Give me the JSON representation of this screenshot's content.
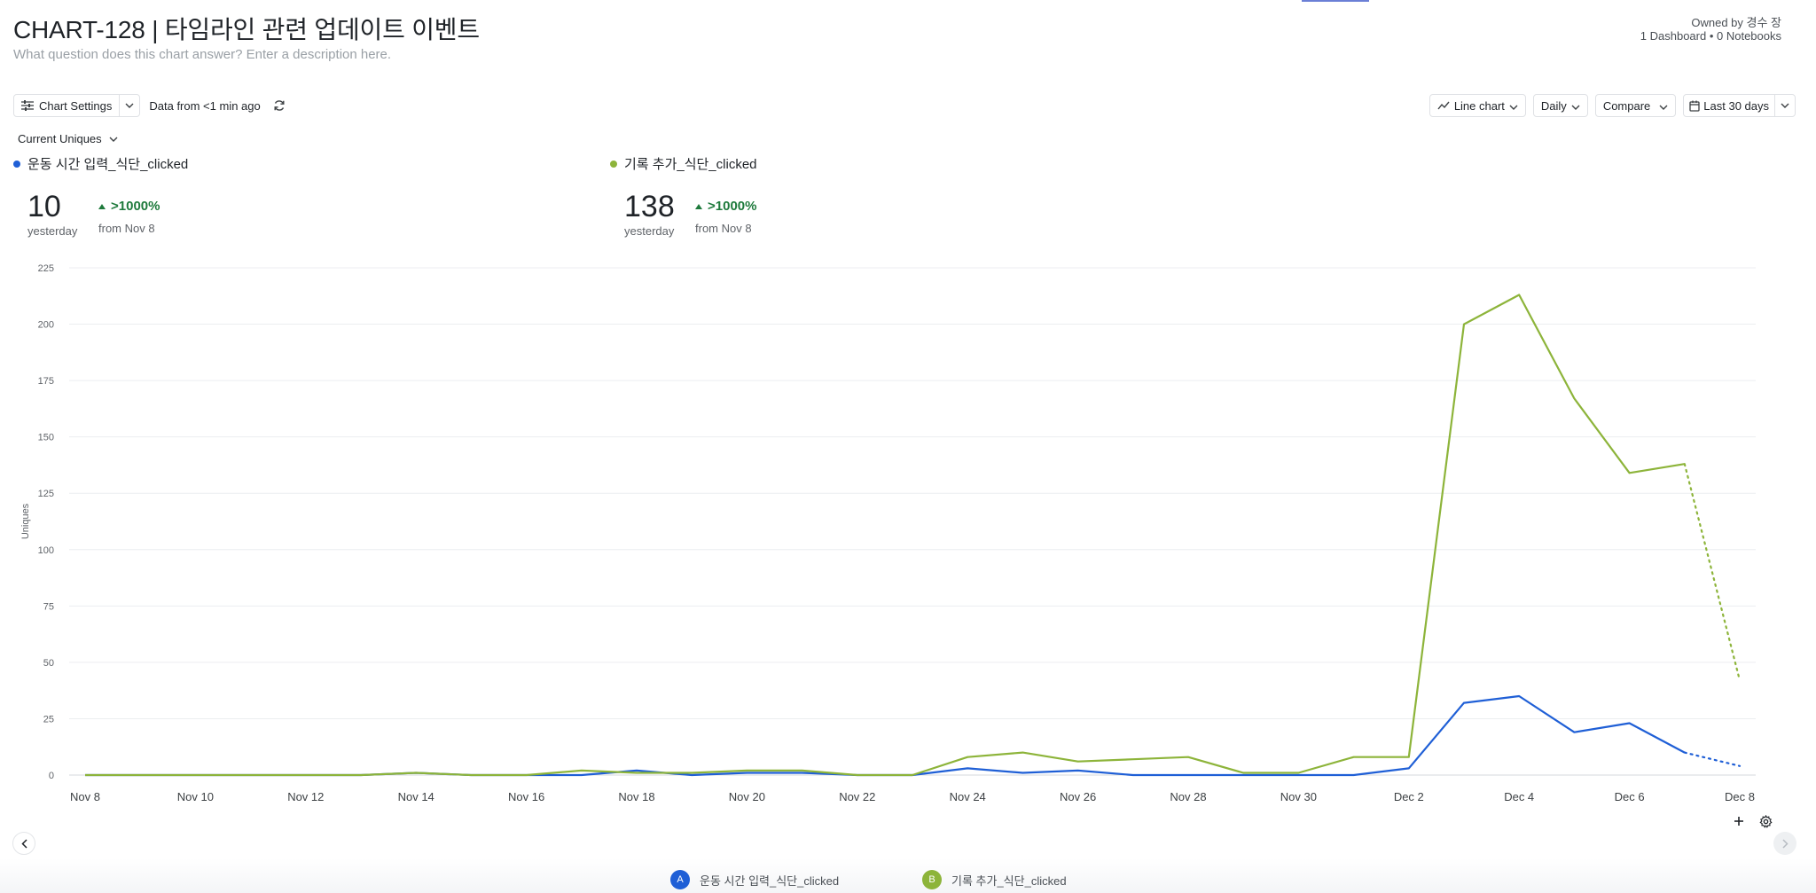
{
  "header": {
    "title": "CHART-128 | 타임라인 관련 업데이트 이벤트",
    "description_placeholder": "What question does this chart answer? Enter a description here.",
    "owner": "Owned by 경수 장",
    "meta": "1 Dashboard • 0 Notebooks"
  },
  "toolbar": {
    "chart_settings_label": "Chart Settings",
    "data_from": "Data from <1 min ago",
    "chart_type_label": "Line chart",
    "interval_label": "Daily",
    "compare_label": "Compare",
    "date_range_label": "Last 30 days"
  },
  "metric_selector": {
    "label": "Current Uniques"
  },
  "kpis": [
    {
      "series": "운동 시간 입력_식단_clicked",
      "value": "10",
      "period": "yesterday",
      "change": ">1000%",
      "from": "from Nov 8"
    },
    {
      "series": "기록 추가_식단_clicked",
      "value": "138",
      "period": "yesterday",
      "change": ">1000%",
      "from": "from Nov 8"
    }
  ],
  "bottom_legend": [
    {
      "badge": "A",
      "label": "운동 시간 입력_식단_clicked"
    },
    {
      "badge": "B",
      "label": "기록 추가_식단_clicked"
    }
  ],
  "colors": {
    "series_a": "#1f5fd6",
    "series_b": "#8db43a",
    "positive": "#1e7a3c"
  },
  "icons": [
    "sliders-icon",
    "chevron-down-icon",
    "refresh-icon",
    "line-chart-icon",
    "calendar-icon",
    "plus-icon",
    "gear-icon",
    "chevron-left-icon",
    "chevron-right-icon",
    "triangle-up-icon"
  ],
  "chart_data": {
    "type": "line",
    "ylabel": "Uniques",
    "ylim": [
      0,
      225
    ],
    "yticks": [
      0,
      25,
      50,
      75,
      100,
      125,
      150,
      175,
      200,
      225
    ],
    "x": [
      "Nov 8",
      "Nov 9",
      "Nov 10",
      "Nov 11",
      "Nov 12",
      "Nov 13",
      "Nov 14",
      "Nov 15",
      "Nov 16",
      "Nov 17",
      "Nov 18",
      "Nov 19",
      "Nov 20",
      "Nov 21",
      "Nov 22",
      "Nov 23",
      "Nov 24",
      "Nov 25",
      "Nov 26",
      "Nov 27",
      "Nov 28",
      "Nov 29",
      "Nov 30",
      "Dec 1",
      "Dec 2",
      "Dec 3",
      "Dec 4",
      "Dec 5",
      "Dec 6",
      "Dec 7",
      "Dec 8"
    ],
    "xtick_labels": [
      "Nov 8",
      "Nov 10",
      "Nov 12",
      "Nov 14",
      "Nov 16",
      "Nov 18",
      "Nov 20",
      "Nov 22",
      "Nov 24",
      "Nov 26",
      "Nov 28",
      "Nov 30",
      "Dec 2",
      "Dec 4",
      "Dec 6",
      "Dec 8"
    ],
    "grid": true,
    "incomplete_from": "Dec 7",
    "series": [
      {
        "name": "운동 시간 입력_식단_clicked",
        "color": "#1f5fd6",
        "values": [
          0,
          0,
          0,
          0,
          0,
          0,
          1,
          0,
          0,
          0,
          2,
          0,
          1,
          1,
          0,
          0,
          3,
          1,
          2,
          0,
          0,
          0,
          0,
          0,
          3,
          32,
          35,
          19,
          23,
          10,
          4
        ]
      },
      {
        "name": "기록 추가_식단_clicked",
        "color": "#8db43a",
        "values": [
          0,
          0,
          0,
          0,
          0,
          0,
          1,
          0,
          0,
          2,
          1,
          1,
          2,
          2,
          0,
          0,
          8,
          10,
          6,
          7,
          8,
          1,
          1,
          8,
          8,
          200,
          213,
          167,
          134,
          138,
          42
        ]
      }
    ]
  }
}
